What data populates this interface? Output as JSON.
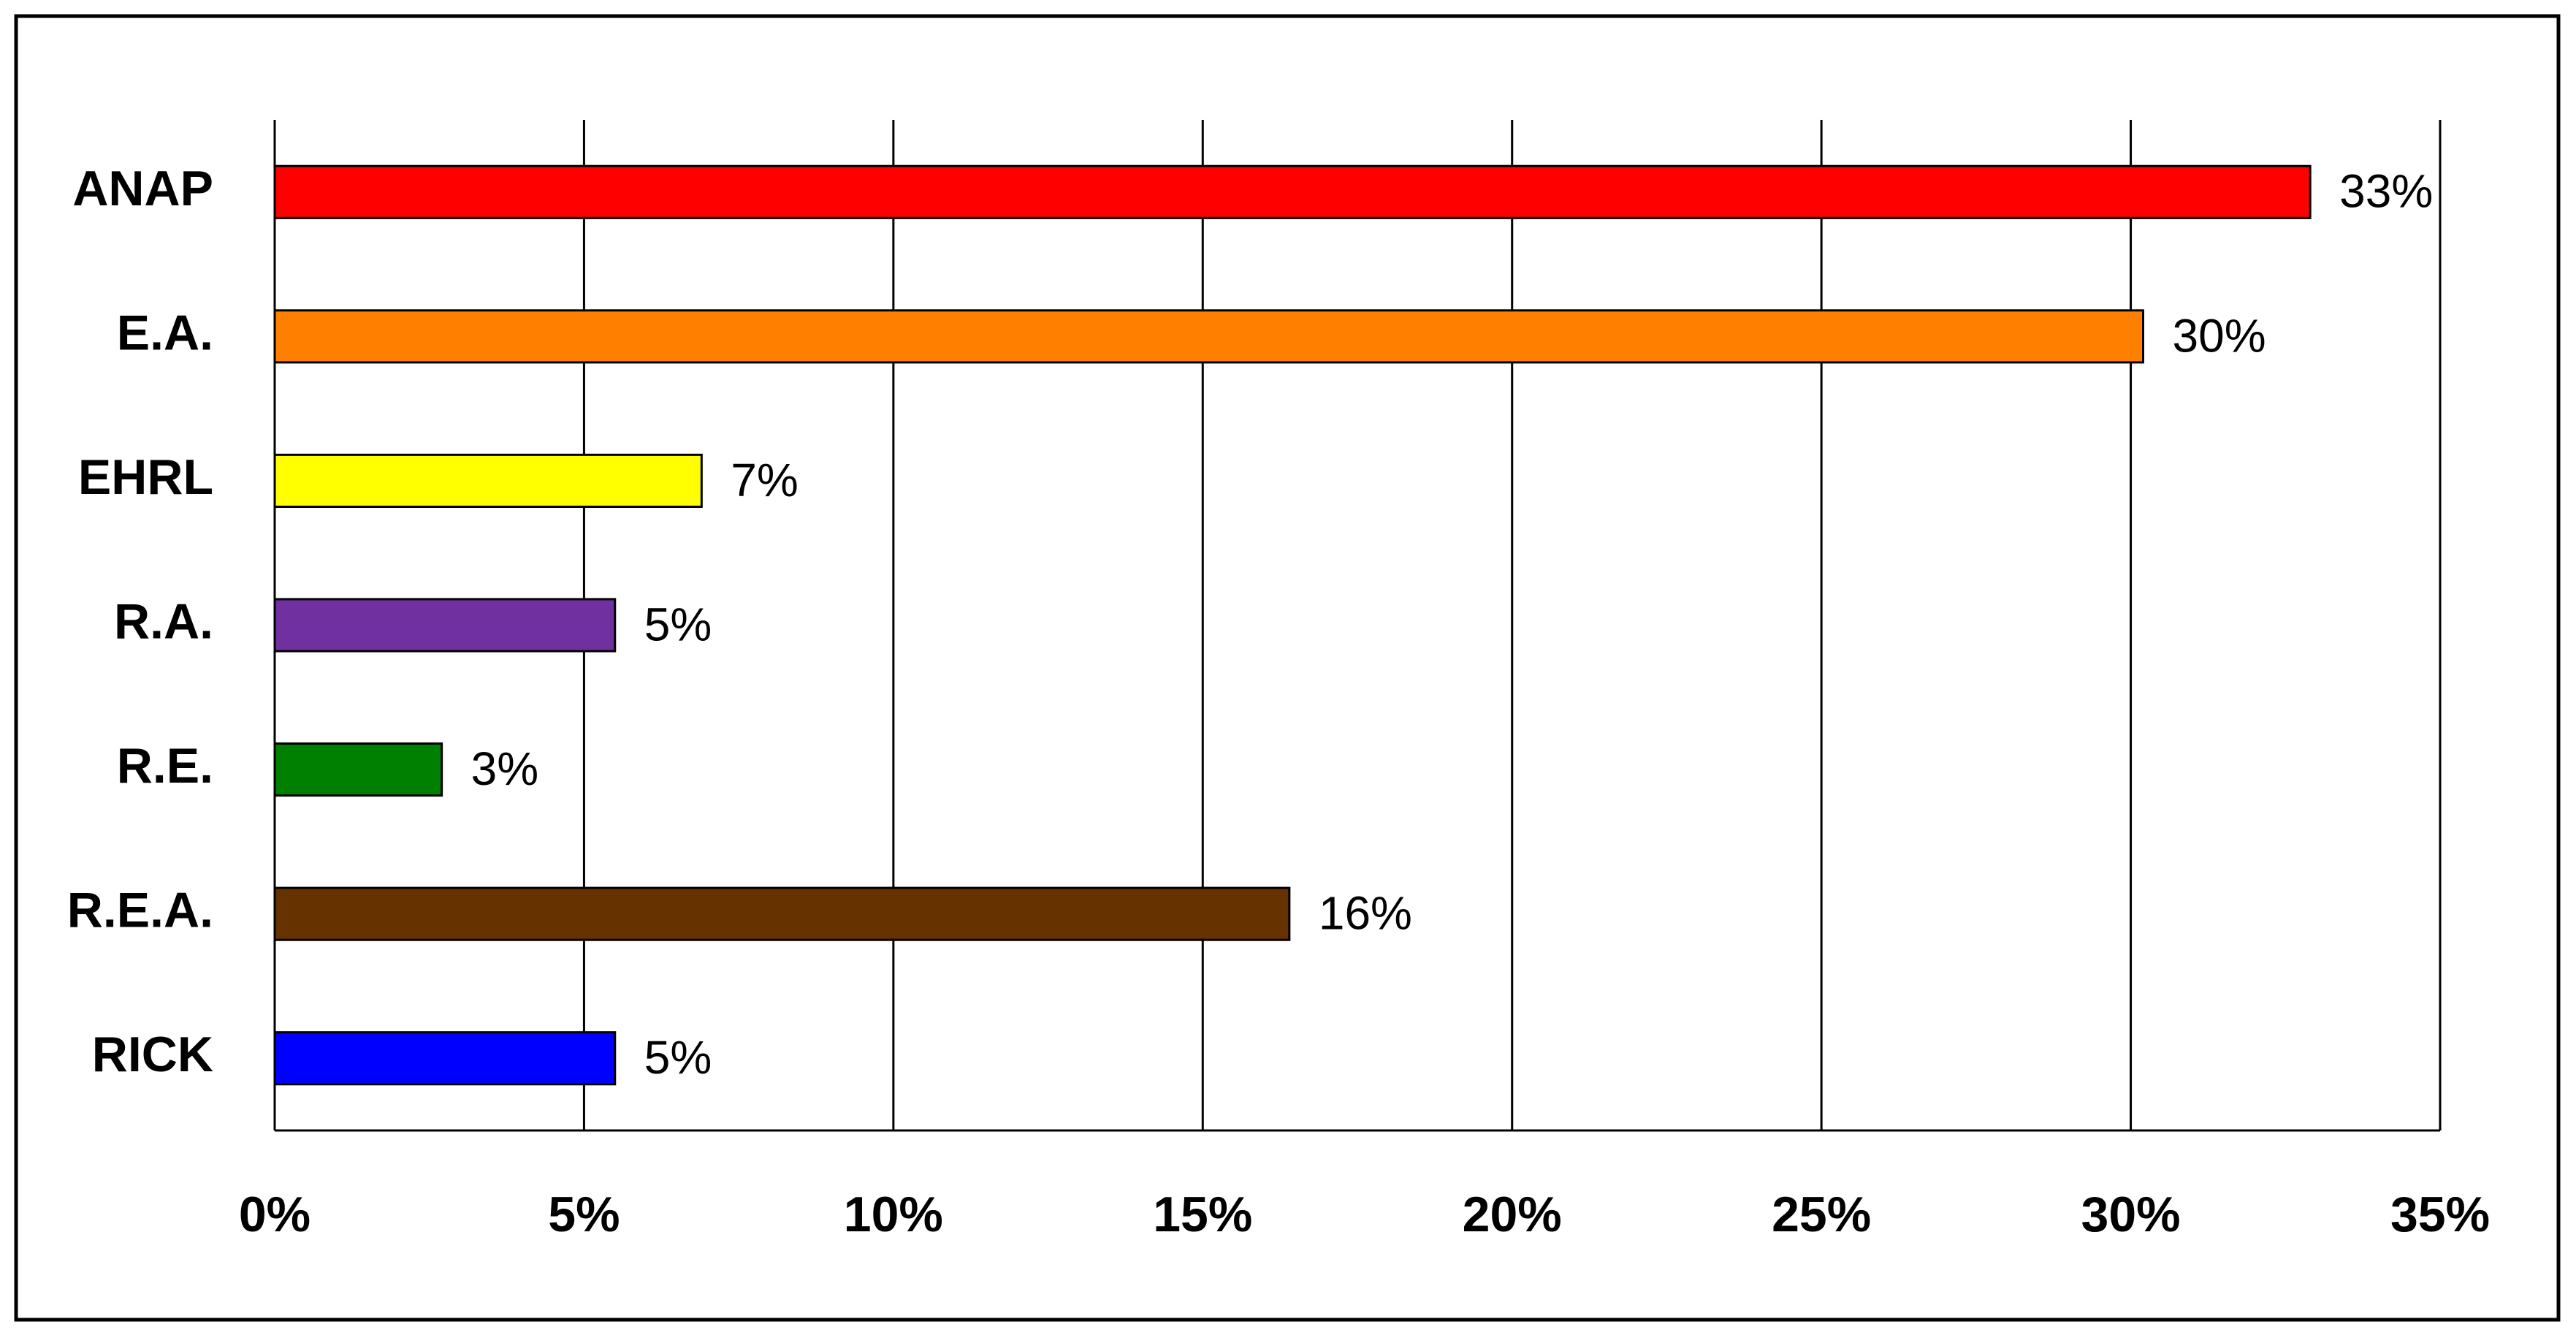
{
  "chart_data": {
    "type": "bar",
    "orientation": "horizontal",
    "categories": [
      "ANAP",
      "E.A.",
      "EHRL",
      "R.A.",
      "R.E.",
      "R.E.A.",
      "RICK"
    ],
    "values": [
      32.9,
      30.2,
      6.9,
      5.5,
      2.7,
      16.4,
      5.5
    ],
    "value_labels": [
      "33%",
      "30%",
      "7%",
      "5%",
      "3%",
      "16%",
      "5%"
    ],
    "colors": [
      "#ff0000",
      "#ff8000",
      "#ffff00",
      "#7030a0",
      "#008000",
      "#663300",
      "#0000ff"
    ],
    "xlim": [
      0,
      35
    ],
    "xticks": [
      {
        "value": 0,
        "label": "0%"
      },
      {
        "value": 5,
        "label": "5%"
      },
      {
        "value": 10,
        "label": "10%"
      },
      {
        "value": 15,
        "label": "15%"
      },
      {
        "value": 20,
        "label": "20%"
      },
      {
        "value": 25,
        "label": "25%"
      },
      {
        "value": 30,
        "label": "30%"
      },
      {
        "value": 35,
        "label": "35%"
      }
    ],
    "grid": true
  }
}
